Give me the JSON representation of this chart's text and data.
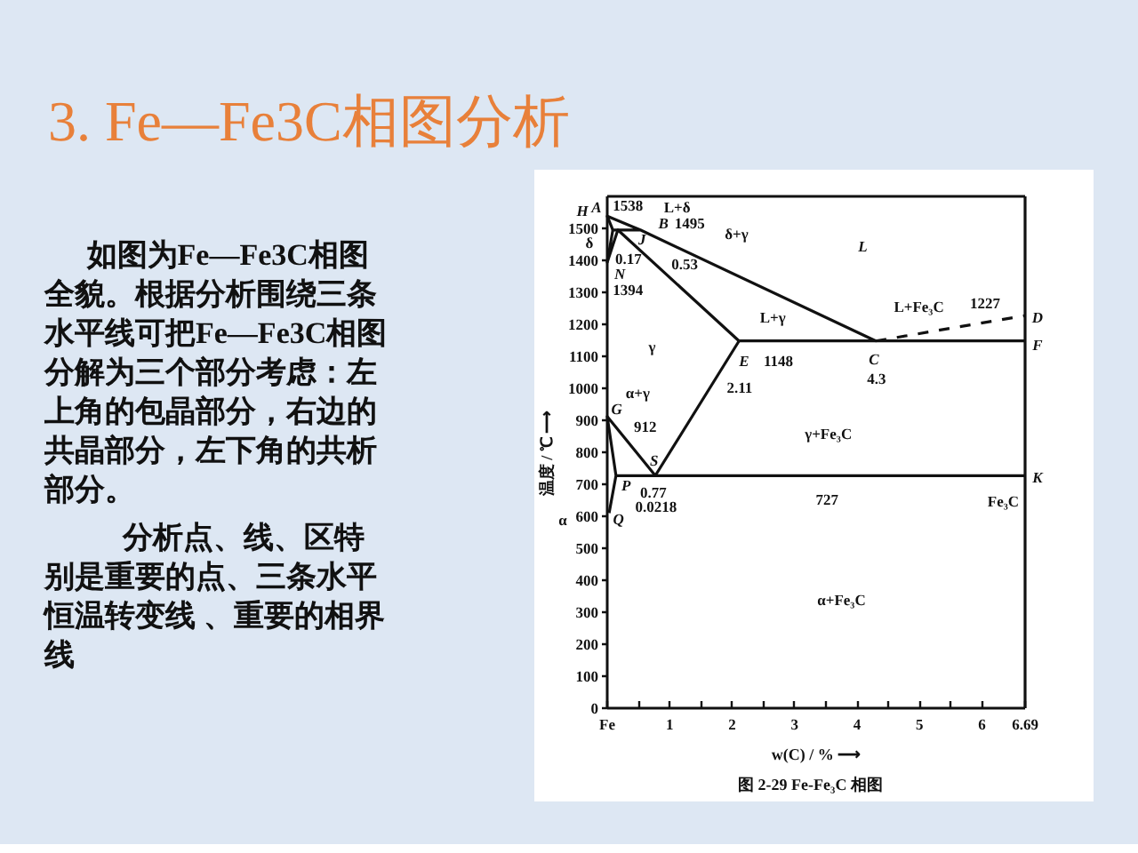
{
  "chart_data": {
    "type": "line",
    "title": "3. Fe—Fe3C相图分析",
    "xlabel": "w(C) / % ⟶",
    "ylabel": "温度 / ℃ ⟶",
    "xlim": [
      0,
      6.69
    ],
    "ylim": [
      0,
      1600
    ],
    "xticks": [
      {
        "value": 0,
        "label": "Fe"
      },
      {
        "value": 0.5,
        "label": null
      },
      1,
      {
        "value": 1.5,
        "label": null
      },
      2,
      {
        "value": 2.5,
        "label": null
      },
      3,
      {
        "value": 3.5,
        "label": null
      },
      4,
      {
        "value": 4.5,
        "label": null
      },
      5,
      {
        "value": 5.5,
        "label": null
      },
      6,
      6.69
    ],
    "yticks": [
      0,
      100,
      200,
      300,
      400,
      500,
      600,
      700,
      800,
      900,
      1000,
      1100,
      1200,
      1300,
      1400,
      1500
    ],
    "grid": false,
    "line_style": "solid",
    "series": [
      {
        "color": "#111111",
        "x": [
          4.3,
          0.53,
          0,
          0.09,
          0.53
        ],
        "values": [
          1148,
          1495,
          1538,
          1495,
          1495
        ]
      },
      {
        "color": "#111111",
        "x": [
          4.3,
          6.69
        ],
        "values": [
          1148,
          1227
        ],
        "line_style": "dashed"
      },
      {
        "color": "#111111",
        "x": [
          0.09,
          0,
          0.17,
          2.11
        ],
        "values": [
          1495,
          1394,
          1495,
          1148
        ]
      },
      {
        "color": "#111111",
        "x": [
          2.11,
          6.69
        ],
        "values": [
          1148,
          1148
        ]
      },
      {
        "color": "#111111",
        "x": [
          2.11,
          0.77,
          0,
          0.14,
          0.03
        ],
        "values": [
          1148,
          727,
          912,
          727,
          610
        ]
      },
      {
        "color": "#111111",
        "x": [
          0.14,
          6.69
        ],
        "values": [
          727,
          727
        ]
      },
      {
        "color": "#111111",
        "x": [
          6.69,
          6.69
        ],
        "values": [
          0,
          1600
        ]
      }
    ],
    "annotations": [
      "如图为Fe—Fe3C相图全貌。根据分析围绕三条水平线可把Fe—Fe3C相图分解为三个部分考虑：左上角的包晶部分，右边的共晶部分，左下角的共析部分。",
      "分析点、线、区特别是重要的点、三条水平恒温转变线 、重要的相界线",
      "图 2-29   Fe-Fe₃C 相图",
      "A",
      "H",
      "δ",
      "α",
      "1538",
      "L+δ",
      "B",
      "1495",
      "δ+γ",
      "J",
      "0.17",
      "0.53",
      "N",
      "1394",
      "L",
      "L+γ",
      "γ",
      "E",
      "1148",
      "2.11",
      "C",
      "4.3",
      "L+Fe₃C",
      "1227",
      "D",
      "F",
      "α+γ",
      "G",
      "912",
      "γ+Fe₃C",
      "S",
      "K",
      "P",
      "0.77",
      "0.0218",
      "Q",
      "727",
      "Fe₃C",
      "α+Fe₃C"
    ]
  }
}
